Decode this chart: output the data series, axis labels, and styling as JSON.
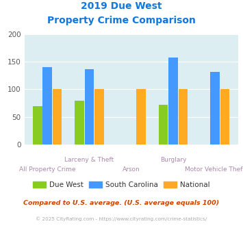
{
  "title_line1": "2019 Due West",
  "title_line2": "Property Crime Comparison",
  "categories": [
    "All Property Crime",
    "Larceny & Theft",
    "Arson",
    "Burglary",
    "Motor Vehicle Theft"
  ],
  "series": {
    "Due West": [
      70,
      79,
      0,
      72,
      0
    ],
    "South Carolina": [
      140,
      136,
      0,
      157,
      131
    ],
    "National": [
      100,
      101,
      101,
      101,
      100
    ]
  },
  "colors": {
    "Due West": "#88cc22",
    "South Carolina": "#4499ff",
    "National": "#ffaa22"
  },
  "ylim": [
    0,
    200
  ],
  "yticks": [
    0,
    50,
    100,
    150,
    200
  ],
  "bg_color": "#ddeef2",
  "title_color": "#1177dd",
  "xlabel_color": "#aa88aa",
  "footnote1": "Compared to U.S. average. (U.S. average equals 100)",
  "footnote2": "© 2025 CityRating.com - https://www.cityrating.com/crime-statistics/",
  "footnote1_color": "#cc4400",
  "footnote2_color": "#aaaaaa",
  "legend_text_color": "#333333"
}
